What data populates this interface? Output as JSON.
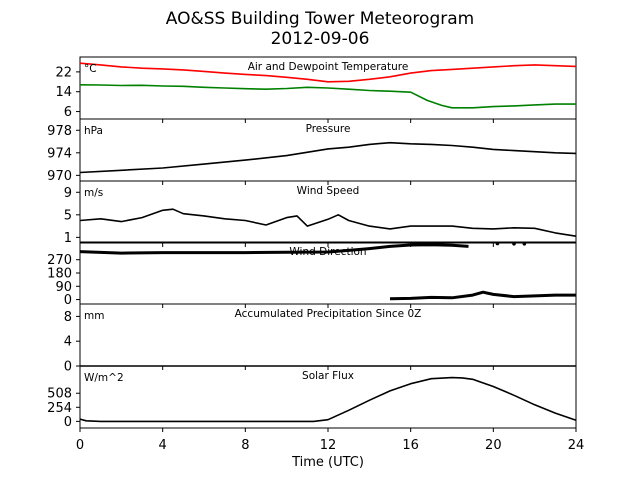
{
  "title": "AO&SS Building Tower Meteorogram",
  "subtitle": "2012-09-06",
  "chart_data": {
    "type": "line",
    "xlabel": "Time (UTC)",
    "xlim": [
      0,
      24
    ],
    "xticks": [
      "0",
      "4",
      "8",
      "12",
      "16",
      "20",
      "24"
    ],
    "panels": [
      {
        "id": "temperature",
        "title": "Air and Dewpoint Temperature",
        "unit": "°C",
        "ylim": [
          3,
          28
        ],
        "yticks": [
          "6",
          "14",
          "22"
        ],
        "series": [
          {
            "key": "air-temperature",
            "color": "#ff0000",
            "x": [
              0,
              1,
              2,
              3,
              4,
              5,
              6,
              7,
              8,
              9,
              10,
              11,
              12,
              13,
              14,
              15,
              16,
              17,
              18,
              19,
              20,
              21,
              22,
              23,
              24
            ],
            "y": [
              25.5,
              24.8,
              24.0,
              23.5,
              23.2,
              22.8,
              22.2,
              21.5,
              21.0,
              20.5,
              19.8,
              19.0,
              18.0,
              18.2,
              19.0,
              20.0,
              21.5,
              22.5,
              23.0,
              23.5,
              24.0,
              24.5,
              24.8,
              24.5,
              24.2
            ]
          },
          {
            "key": "dewpoint",
            "color": "#008000",
            "x": [
              0,
              1,
              2,
              3,
              4,
              5,
              6,
              7,
              8,
              9,
              10,
              11,
              12,
              13,
              14,
              15,
              16,
              16.8,
              17.5,
              18,
              19,
              20,
              21,
              22,
              23,
              24
            ],
            "y": [
              16.8,
              16.7,
              16.5,
              16.6,
              16.3,
              16.2,
              15.8,
              15.5,
              15.2,
              15.0,
              15.3,
              15.8,
              15.5,
              15.0,
              14.5,
              14.2,
              13.8,
              10.5,
              8.5,
              7.5,
              7.5,
              8.0,
              8.3,
              8.7,
              9.0,
              9.0
            ]
          }
        ]
      },
      {
        "id": "pressure",
        "title": "Pressure",
        "unit": "hPa",
        "ylim": [
          969,
          980
        ],
        "yticks": [
          "970",
          "974",
          "978"
        ],
        "series": [
          {
            "key": "pressure",
            "color": "#000000",
            "x": [
              0,
              2,
              4,
              6,
              8,
              10,
              12,
              13,
              14,
              15,
              16,
              17,
              18,
              19,
              20,
              21,
              22,
              23,
              24
            ],
            "y": [
              970.5,
              970.9,
              971.3,
              972.0,
              972.7,
              973.5,
              974.7,
              975.0,
              975.5,
              975.8,
              975.6,
              975.5,
              975.3,
              975.0,
              974.6,
              974.4,
              974.2,
              974.0,
              973.9
            ]
          }
        ]
      },
      {
        "id": "wind-speed",
        "title": "Wind Speed",
        "unit": "m/s",
        "ylim": [
          0,
          11
        ],
        "yticks": [
          "1",
          "5",
          "9"
        ],
        "series": [
          {
            "key": "wind-speed",
            "color": "#000000",
            "x": [
              0,
              1,
              2,
              3,
              4,
              4.5,
              5,
              6,
              7,
              8,
              9,
              10,
              10.5,
              11,
              12,
              12.5,
              13,
              14,
              15,
              16,
              17,
              18,
              19,
              20,
              21,
              22,
              23,
              24
            ],
            "y": [
              4.0,
              4.3,
              3.8,
              4.5,
              5.8,
              6.0,
              5.2,
              4.8,
              4.3,
              4.0,
              3.2,
              4.5,
              4.8,
              3.0,
              4.2,
              5.0,
              4.0,
              3.0,
              2.5,
              3.0,
              3.0,
              3.0,
              2.6,
              2.5,
              2.7,
              2.6,
              1.8,
              1.2
            ]
          }
        ]
      },
      {
        "id": "wind-direction",
        "title": "Wind Direction",
        "unit": "",
        "ylim": [
          -30,
          390
        ],
        "yticks": [
          "0",
          "90",
          "180",
          "270"
        ],
        "series": [
          {
            "key": "wind-direction-main",
            "color": "#000000",
            "x": [
              0,
              2,
              4,
              6,
              8,
              10,
              12,
              13,
              14,
              15,
              16,
              17,
              18,
              18.8
            ],
            "y": [
              325,
              315,
              318,
              318,
              318,
              320,
              322,
              333,
              345,
              360,
              370,
              372,
              368,
              360
            ]
          },
          {
            "key": "wind-direction-low",
            "color": "#000000",
            "x": [
              15,
              16,
              17,
              18,
              19,
              19.5,
              20,
              21,
              22,
              23,
              24
            ],
            "y": [
              5,
              8,
              15,
              12,
              30,
              50,
              35,
              20,
              25,
              30,
              30
            ]
          },
          {
            "key": "wind-direction-scatter",
            "color": "#000000",
            "x": [
              20.2,
              21.0,
              21.5
            ],
            "y": [
              380,
              378,
              378
            ]
          }
        ]
      },
      {
        "id": "precipitation",
        "title": "Accumulated Precipitation Since 0Z",
        "unit": "mm",
        "ylim": [
          0,
          10
        ],
        "yticks": [
          "0",
          "4",
          "8"
        ],
        "series": [
          {
            "key": "precipitation",
            "color": "#000000",
            "x": [
              0,
              24
            ],
            "y": [
              0,
              0
            ]
          }
        ]
      },
      {
        "id": "solar-flux",
        "title": "Solar Flux",
        "unit": "W/m^2",
        "ylim": [
          -120,
          1000
        ],
        "yticks": [
          "0",
          "254",
          "508"
        ],
        "series": [
          {
            "key": "solar-flux",
            "color": "#000000",
            "x": [
              0,
              0.3,
              1,
              11.3,
              12,
              13,
              14,
              15,
              16,
              17,
              18,
              18.5,
              19,
              20,
              21,
              22,
              23,
              24
            ],
            "y": [
              40,
              10,
              0,
              0,
              30,
              200,
              380,
              550,
              680,
              770,
              790,
              785,
              760,
              630,
              470,
              300,
              150,
              20
            ]
          }
        ]
      }
    ]
  }
}
